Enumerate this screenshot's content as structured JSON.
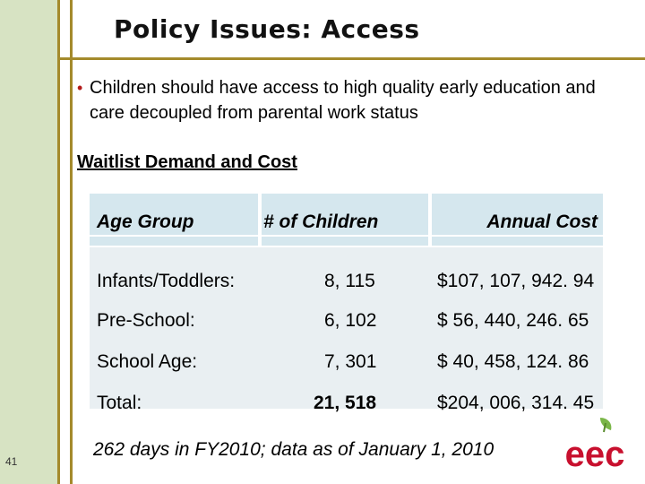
{
  "slide": {
    "title": "Policy Issues: Access",
    "number": "41"
  },
  "bullet": {
    "text": "Children should have access to high quality early education and care decoupled from parental work status"
  },
  "subheading": "Waitlist Demand and Cost",
  "table": {
    "headers": {
      "age_group": "Age Group",
      "children": "# of Children",
      "cost": "Annual Cost"
    },
    "rows": [
      {
        "age_group": "Infants/Toddlers:",
        "children": "8, 115",
        "cost": "$107, 107, 942. 94"
      },
      {
        "age_group": "Pre-School:",
        "children": "6, 102",
        "cost": "$  56, 440, 246. 65"
      },
      {
        "age_group": "School Age:",
        "children": "7, 301",
        "cost": "$  40, 458, 124. 86"
      },
      {
        "age_group": "Total:",
        "children": "21, 518",
        "cost": "$204, 006, 314. 45"
      }
    ]
  },
  "footnote": "262 days in FY2010; data as of January 1, 2010",
  "logo": {
    "icon": "eec-logo-icon",
    "text": "eec"
  },
  "colors": {
    "accent_line": "#a48a2c",
    "side_band": "#d7e3c3",
    "table_header": "#d5e7ee",
    "logo_red": "#c8102e",
    "logo_green": "#7ab648"
  }
}
